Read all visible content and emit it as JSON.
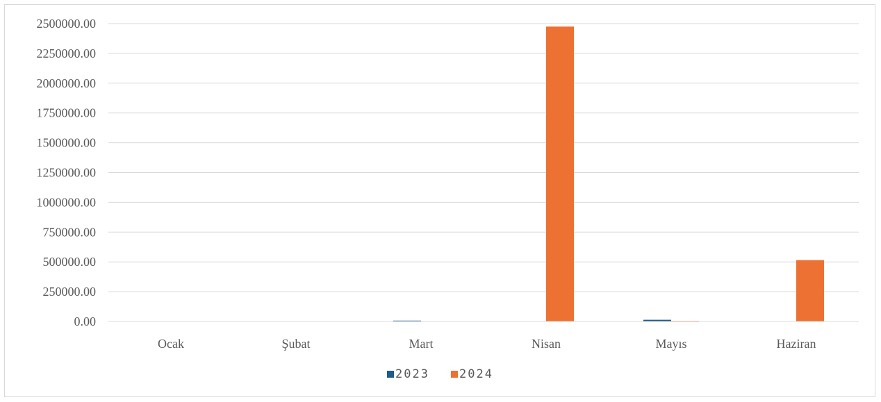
{
  "chart_data": {
    "type": "bar",
    "categories": [
      "Ocak",
      "Şubat",
      "Mart",
      "Nisan",
      "Mayıs",
      "Haziran"
    ],
    "series": [
      {
        "name": "2023",
        "color": "#1f5c8b",
        "values": [
          0,
          0,
          7000,
          0,
          14000,
          0
        ]
      },
      {
        "name": "2024",
        "color": "#ed7133",
        "values": [
          0,
          0,
          0,
          2475000,
          5000,
          515000
        ]
      }
    ],
    "yticks": [
      "0.00",
      "250000.00",
      "500000.00",
      "750000.00",
      "1000000.00",
      "1250000.00",
      "1500000.00",
      "1750000.00",
      "2000000.00",
      "2250000.00",
      "2500000.00"
    ],
    "ylim": [
      0,
      2500000
    ],
    "grid": true,
    "legend_position": "bottom",
    "title": "",
    "xlabel": "",
    "ylabel": ""
  }
}
